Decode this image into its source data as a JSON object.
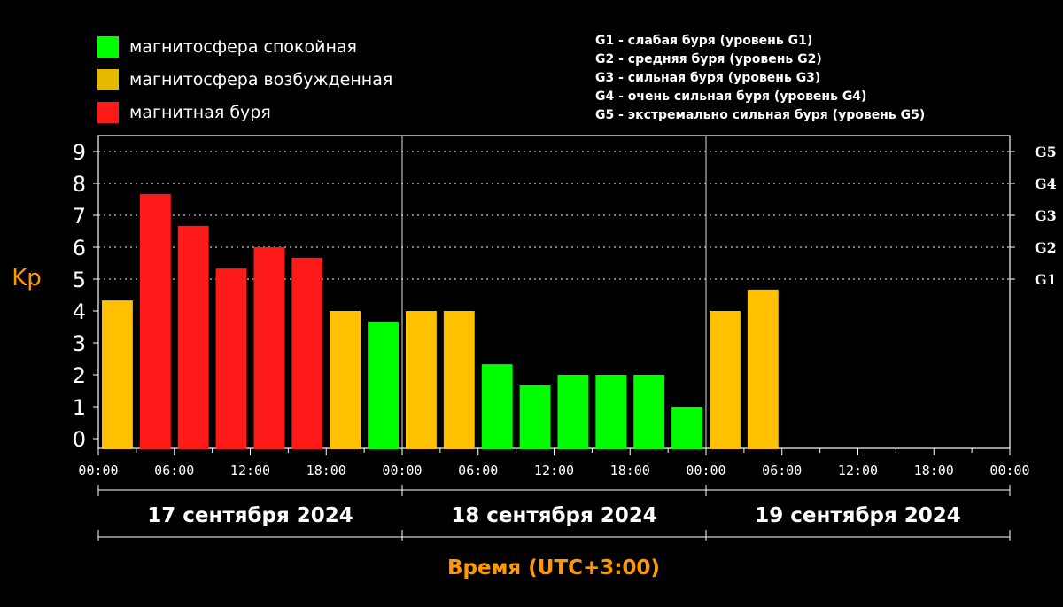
{
  "legend": {
    "items": [
      {
        "label": "магнитосфера спокойная",
        "color": "#00ff00"
      },
      {
        "label": "магнитосфера возбужденная",
        "color": "#e6b800"
      },
      {
        "label": "магнитная буря",
        "color": "#ff1a1a"
      }
    ]
  },
  "storm_legend": [
    "G1 - слабая буря (уровень G1)",
    "G2 - средняя буря (уровень G2)",
    "G3 - сильная буря (уровень G3)",
    "G4 - очень сильная буря (уровень G4)",
    "G5 - экстремально сильная буря (уровень G5)"
  ],
  "colors": {
    "quiet": "#00ff00",
    "active": "#ffc000",
    "storm": "#ff1a1a",
    "axis": "#ffffff",
    "label_orange": "#ff9900"
  },
  "chart_data": {
    "type": "bar",
    "ylabel": "Kp",
    "xlabel": "Время (UTC+3:00)",
    "ylim": [
      0,
      9
    ],
    "yticks": [
      0,
      1,
      2,
      3,
      4,
      5,
      6,
      7,
      8,
      9
    ],
    "right_ticks": [
      {
        "value": 5,
        "label": "G1"
      },
      {
        "value": 6,
        "label": "G2"
      },
      {
        "value": 7,
        "label": "G3"
      },
      {
        "value": 8,
        "label": "G4"
      },
      {
        "value": 9,
        "label": "G5"
      }
    ],
    "xtick_labels": [
      "00:00",
      "06:00",
      "12:00",
      "18:00",
      "00:00",
      "06:00",
      "12:00",
      "18:00",
      "00:00",
      "06:00",
      "12:00",
      "18:00",
      "00:00"
    ],
    "days": [
      "17 сентября 2024",
      "18 сентября 2024",
      "19 сентября 2024"
    ],
    "interval_hours": 3,
    "bars": [
      {
        "start": "17.09 00:00",
        "kp": 4.33,
        "level": "active"
      },
      {
        "start": "17.09 03:00",
        "kp": 7.67,
        "level": "storm"
      },
      {
        "start": "17.09 06:00",
        "kp": 6.67,
        "level": "storm"
      },
      {
        "start": "17.09 09:00",
        "kp": 5.33,
        "level": "storm"
      },
      {
        "start": "17.09 12:00",
        "kp": 6.0,
        "level": "storm"
      },
      {
        "start": "17.09 15:00",
        "kp": 5.67,
        "level": "storm"
      },
      {
        "start": "17.09 18:00",
        "kp": 4.0,
        "level": "active"
      },
      {
        "start": "17.09 21:00",
        "kp": 3.67,
        "level": "quiet"
      },
      {
        "start": "18.09 00:00",
        "kp": 4.0,
        "level": "active"
      },
      {
        "start": "18.09 03:00",
        "kp": 4.0,
        "level": "active"
      },
      {
        "start": "18.09 06:00",
        "kp": 2.33,
        "level": "quiet"
      },
      {
        "start": "18.09 09:00",
        "kp": 1.67,
        "level": "quiet"
      },
      {
        "start": "18.09 12:00",
        "kp": 2.0,
        "level": "quiet"
      },
      {
        "start": "18.09 15:00",
        "kp": 2.0,
        "level": "quiet"
      },
      {
        "start": "18.09 18:00",
        "kp": 2.0,
        "level": "quiet"
      },
      {
        "start": "18.09 21:00",
        "kp": 1.0,
        "level": "quiet"
      },
      {
        "start": "19.09 00:00",
        "kp": 4.0,
        "level": "active"
      },
      {
        "start": "19.09 03:00",
        "kp": 4.67,
        "level": "active"
      }
    ]
  }
}
